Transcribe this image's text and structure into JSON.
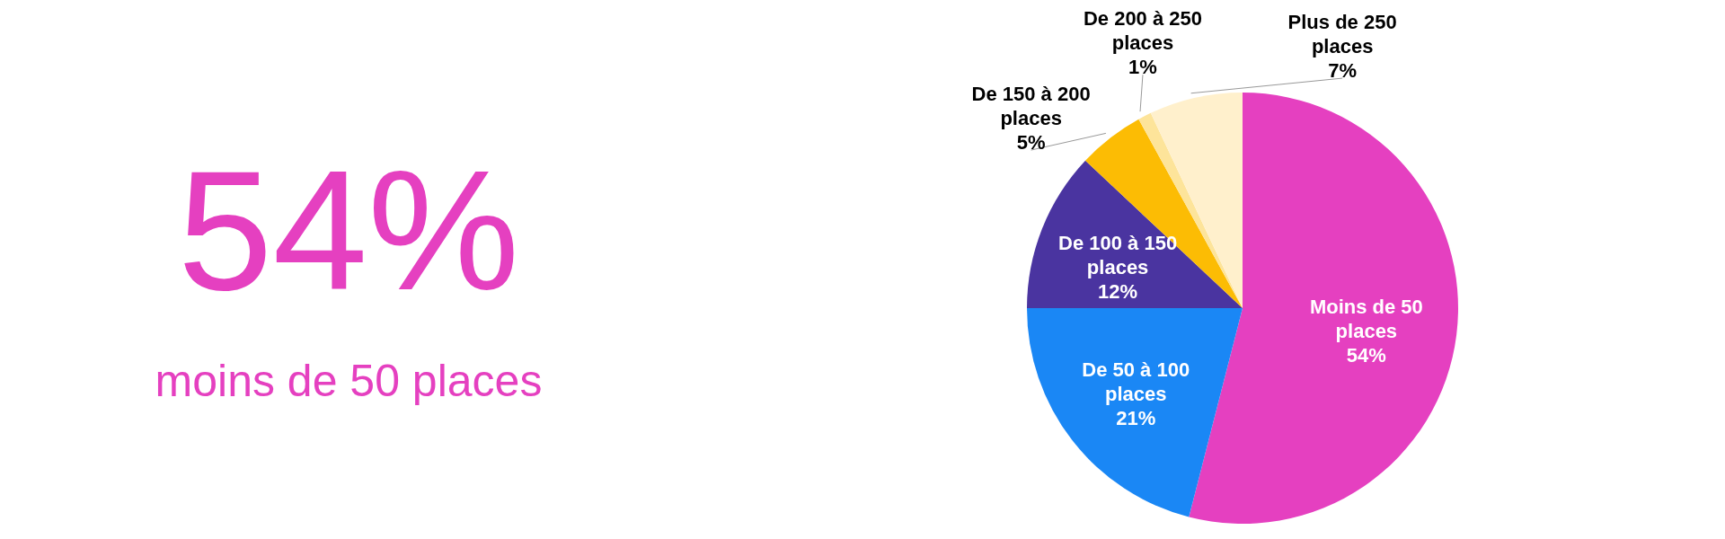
{
  "chart_data": [
    {
      "type": "other",
      "annotations": [
        "54%",
        "moins de 50 places"
      ],
      "color": "#e540c0"
    },
    {
      "type": "pie",
      "categories": [
        "Moins de 50 places",
        "De 50 à 100 places",
        "De 100 à 150 places",
        "De 150 à 200 places",
        "De 200 à 250 places",
        "Plus de 250 places"
      ],
      "values": [
        54,
        21,
        12,
        5,
        1,
        7
      ],
      "colors": [
        "#e540c0",
        "#1a87f5",
        "#4a34a0",
        "#fcbc04",
        "#fde49a",
        "#fff0cc"
      ],
      "value_labels": [
        "54%",
        "21%",
        "12%",
        "5%",
        "1%",
        "7%"
      ],
      "legend": false
    }
  ]
}
